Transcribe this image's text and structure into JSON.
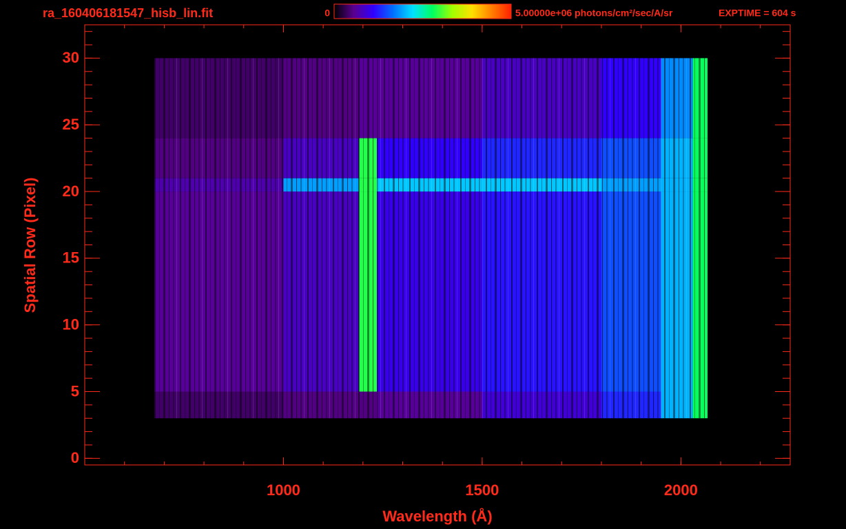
{
  "chart_data": {
    "type": "heatmap",
    "title": "ra_160406181547_hisb_lin.fit",
    "annotation": "EXPTIME = 604 s",
    "xlabel": "Wavelength (Å)",
    "ylabel": "Spatial Row (Pixel)",
    "x_edges": [
      675,
      1000,
      1190,
      1235,
      1500,
      1800,
      1950,
      2030,
      2067
    ],
    "y_edges": [
      3,
      5,
      20,
      21,
      24,
      30
    ],
    "z": [
      [
        400000,
        500000,
        500000,
        600000,
        900000,
        1300000,
        2000000,
        2800000
      ],
      [
        600000,
        800000,
        2900000,
        1000000,
        1200000,
        1500000,
        2000000,
        2800000
      ],
      [
        700000,
        1900000,
        2900000,
        2100000,
        2100000,
        1900000,
        2000000,
        2800000
      ],
      [
        500000,
        800000,
        2900000,
        1100000,
        1300000,
        1500000,
        2000000,
        2800000
      ],
      [
        400000,
        500000,
        600000,
        600000,
        800000,
        1100000,
        1800000,
        2800000
      ]
    ],
    "zlim": [
      0,
      5000000
    ],
    "zticks": [
      0,
      {
        "value": 5000000,
        "label": "5.00000e+06 photons/cm²/sec/A/sr"
      }
    ],
    "colormap": [
      "#000000",
      "#5a0090",
      "#3000ff",
      "#0070ff",
      "#00e0ff",
      "#00ff60",
      "#a0ff00",
      "#ffe000",
      "#ff8000",
      "#ff2000"
    ],
    "xlim": [
      500,
      2275
    ],
    "xticks": [
      1000,
      1500,
      2000
    ],
    "xminor": 100,
    "ylim": [
      -0.5,
      32.5
    ],
    "yticks": [
      0,
      5,
      10,
      15,
      20,
      25,
      30
    ],
    "yminor": 1,
    "axis_color": "#ff2a1a"
  }
}
